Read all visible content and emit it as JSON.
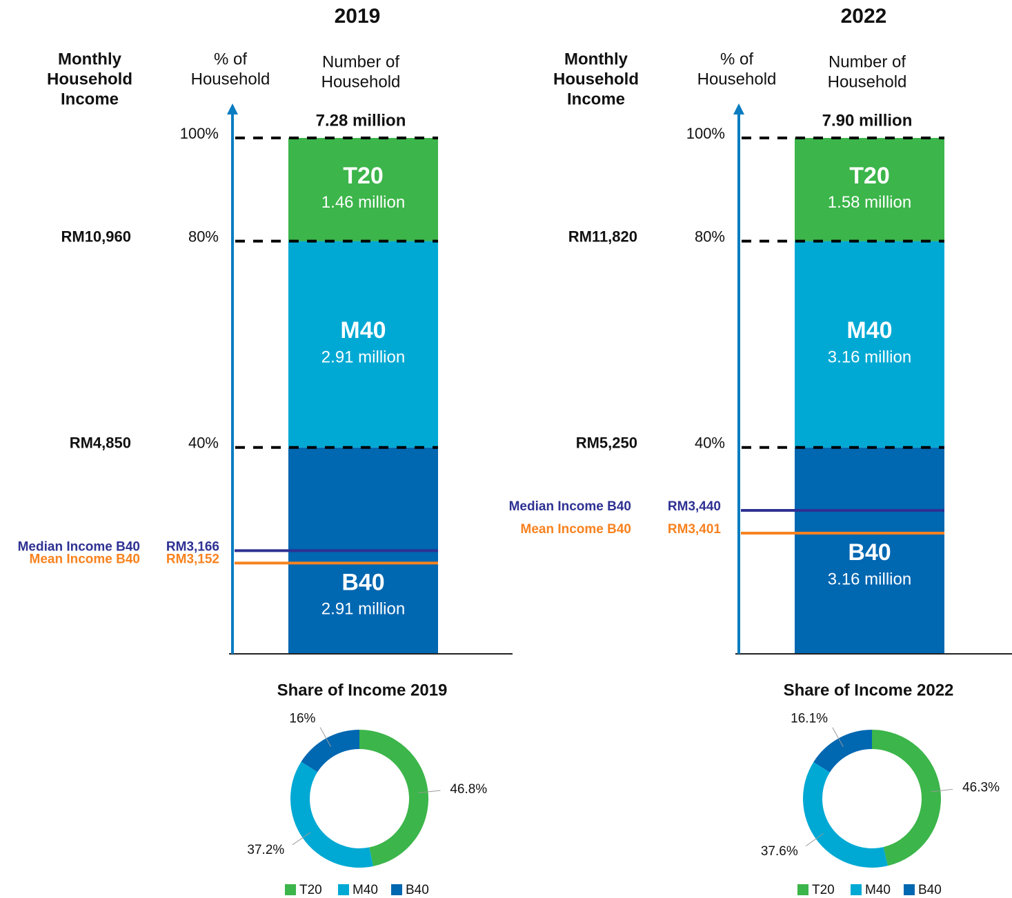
{
  "chart_data": [
    {
      "type": "stacked_bar",
      "title": "2019",
      "income_label": [
        "Monthly",
        "Household",
        "Income"
      ],
      "percent_label": [
        "% of",
        "Household"
      ],
      "count_label": [
        "Number of",
        "Household"
      ],
      "total_label": "7.28 million",
      "ylim": [
        0,
        100
      ],
      "yticks": [
        {
          "value": 100,
          "label": "100%"
        },
        {
          "value": 80,
          "label": "80%"
        },
        {
          "value": 40,
          "label": "40%"
        }
      ],
      "thresholds": [
        {
          "value": 80,
          "label": "RM10,960"
        },
        {
          "value": 40,
          "label": "RM4,850"
        }
      ],
      "series": [
        {
          "name": "B40",
          "color": "#0067b1",
          "values": [
            40
          ],
          "counts": [
            "2.91 million"
          ]
        },
        {
          "name": "M40",
          "color": "#00a9d4",
          "values": [
            40
          ],
          "counts": [
            "2.91 million"
          ]
        },
        {
          "name": "T20",
          "color": "#3cb54a",
          "values": [
            20
          ],
          "counts": [
            "1.46 million"
          ]
        }
      ],
      "markers": [
        {
          "name": "Median Income B40",
          "label": "RM3,166",
          "value": 20,
          "color": "#2e3192"
        },
        {
          "name": "Mean Income B40",
          "label": "RM3,152",
          "value": 17.6,
          "color": "#f7821f"
        }
      ]
    },
    {
      "type": "stacked_bar",
      "title": "2022",
      "income_label": [
        "Monthly",
        "Household",
        "Income"
      ],
      "percent_label": [
        "% of",
        "Household"
      ],
      "count_label": [
        "Number of",
        "Household"
      ],
      "total_label": "7.90 million",
      "ylim": [
        0,
        100
      ],
      "yticks": [
        {
          "value": 100,
          "label": "100%"
        },
        {
          "value": 80,
          "label": "80%"
        },
        {
          "value": 40,
          "label": "40%"
        }
      ],
      "thresholds": [
        {
          "value": 80,
          "label": "RM11,820"
        },
        {
          "value": 40,
          "label": "RM5,250"
        }
      ],
      "series": [
        {
          "name": "B40",
          "color": "#0067b1",
          "values": [
            40
          ],
          "counts": [
            "3.16 million"
          ]
        },
        {
          "name": "M40",
          "color": "#00a9d4",
          "values": [
            40
          ],
          "counts": [
            "3.16 million"
          ]
        },
        {
          "name": "T20",
          "color": "#3cb54a",
          "values": [
            20
          ],
          "counts": [
            "1.58 million"
          ]
        }
      ],
      "markers": [
        {
          "name": "Median Income B40",
          "label": "RM3,440",
          "value": 27.8,
          "color": "#2e3192"
        },
        {
          "name": "Mean Income B40",
          "label": "RM3,401",
          "value": 23.4,
          "color": "#f7821f"
        }
      ]
    },
    {
      "type": "pie",
      "title": "Share of Income 2019",
      "categories": [
        "T20",
        "M40",
        "B40"
      ],
      "values": [
        46.8,
        37.2,
        16
      ],
      "value_labels": [
        "46.8%",
        "37.2%",
        "16%"
      ],
      "colors": [
        "#3cb54a",
        "#00a9d4",
        "#0067b1"
      ],
      "legend": "bottom"
    },
    {
      "type": "pie",
      "title": "Share of Income 2022",
      "categories": [
        "T20",
        "M40",
        "B40"
      ],
      "values": [
        46.3,
        37.6,
        16.1
      ],
      "value_labels": [
        "46.3%",
        "37.6%",
        "16.1%"
      ],
      "colors": [
        "#3cb54a",
        "#00a9d4",
        "#0067b1"
      ],
      "legend": "bottom"
    }
  ]
}
